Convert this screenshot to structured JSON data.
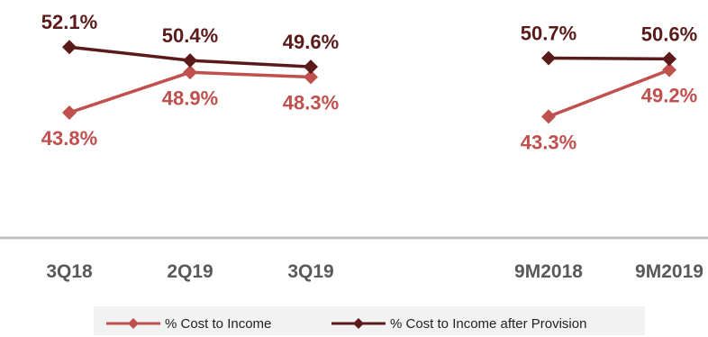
{
  "chart_data": {
    "type": "line",
    "categories": [
      "3Q18",
      "2Q19",
      "3Q19",
      "9M2018",
      "9M2019"
    ],
    "groups": [
      {
        "categories": [
          "3Q18",
          "2Q19",
          "3Q19"
        ]
      },
      {
        "categories": [
          "9M2018",
          "9M2019"
        ]
      }
    ],
    "series": [
      {
        "name": "% Cost to Income",
        "color": "#C0504D",
        "values": [
          43.8,
          48.9,
          48.3,
          43.3,
          49.2
        ],
        "labels": [
          "43.8%",
          "48.9%",
          "48.3%",
          "43.3%",
          "49.2%"
        ]
      },
      {
        "name": "% Cost to Income after Provision",
        "color": "#5B1A1A",
        "values": [
          52.1,
          50.4,
          49.6,
          50.7,
          50.6
        ],
        "labels": [
          "52.1%",
          "50.4%",
          "49.6%",
          "50.7%",
          "50.6%"
        ]
      }
    ],
    "ylim": [
      30,
      56
    ],
    "grid": false,
    "legend": "bottom"
  }
}
